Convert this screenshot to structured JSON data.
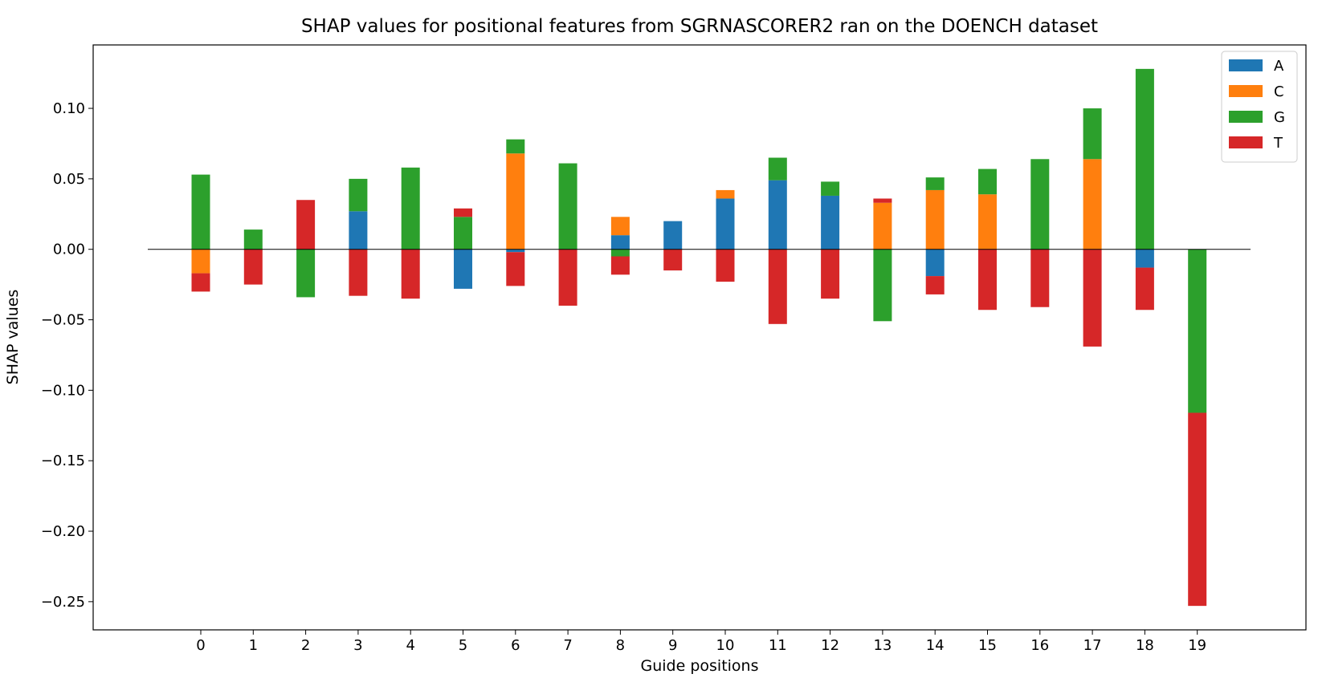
{
  "chart_data": {
    "type": "bar",
    "stacked": true,
    "title": "SHAP values for positional features from SGRNASCORER2 ran on the DOENCH dataset",
    "xlabel": "Guide positions",
    "ylabel": "SHAP values",
    "ylim": [
      -0.27,
      0.145
    ],
    "yticks": [
      0.1,
      0.05,
      0.0,
      -0.05,
      -0.1,
      -0.15,
      -0.2,
      -0.25
    ],
    "ytick_labels": [
      "0.10",
      "0.05",
      "0.00",
      "−0.05",
      "−0.10",
      "−0.15",
      "−0.20",
      "−0.25"
    ],
    "categories": [
      "0",
      "1",
      "2",
      "3",
      "4",
      "5",
      "6",
      "7",
      "8",
      "9",
      "10",
      "11",
      "12",
      "13",
      "14",
      "15",
      "16",
      "17",
      "18",
      "19"
    ],
    "zero_line": true,
    "grid": false,
    "legend_position": "top-right",
    "series": [
      {
        "name": "A",
        "color": "#1f77b4",
        "values": [
          0,
          0,
          0,
          0.027,
          0,
          -0.028,
          -0.002,
          0,
          0.01,
          0.02,
          0.036,
          0.049,
          0.038,
          0,
          -0.019,
          0,
          0,
          0,
          -0.013,
          0
        ]
      },
      {
        "name": "C",
        "color": "#ff7f0e",
        "values": [
          -0.017,
          0,
          0,
          0,
          0,
          0,
          0.068,
          0,
          0.013,
          0,
          0.006,
          0,
          0,
          0.033,
          0.042,
          0.039,
          0,
          0.064,
          0,
          0
        ]
      },
      {
        "name": "G",
        "color": "#2ca02c",
        "values": [
          0.053,
          0.014,
          -0.034,
          0.023,
          0.058,
          0.023,
          0.01,
          0.061,
          -0.005,
          0,
          0,
          0.016,
          0.01,
          -0.051,
          0.009,
          0.018,
          0.064,
          0.036,
          0.128,
          -0.116
        ]
      },
      {
        "name": "T",
        "color": "#d62728",
        "values": [
          -0.013,
          -0.025,
          0.035,
          -0.033,
          -0.035,
          0.006,
          -0.024,
          -0.04,
          -0.013,
          -0.015,
          -0.023,
          -0.053,
          -0.035,
          0.003,
          -0.013,
          -0.043,
          -0.041,
          -0.069,
          -0.03,
          -0.137
        ]
      }
    ]
  }
}
